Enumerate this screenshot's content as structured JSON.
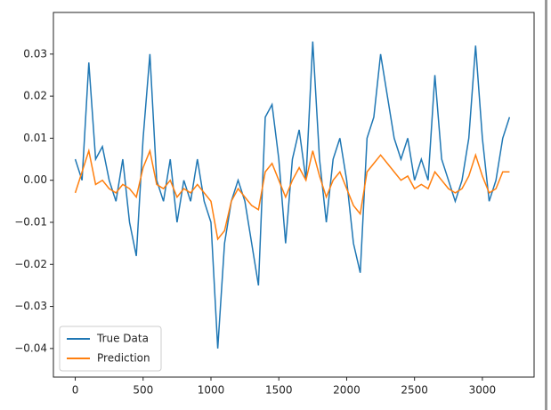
{
  "chart_data": {
    "type": "line",
    "x": [
      0,
      50,
      100,
      150,
      200,
      250,
      300,
      350,
      400,
      450,
      500,
      550,
      600,
      650,
      700,
      750,
      800,
      850,
      900,
      950,
      1000,
      1050,
      1100,
      1150,
      1200,
      1250,
      1300,
      1350,
      1400,
      1450,
      1500,
      1550,
      1600,
      1650,
      1700,
      1750,
      1800,
      1850,
      1900,
      1950,
      2000,
      2050,
      2100,
      2150,
      2200,
      2250,
      2300,
      2350,
      2400,
      2450,
      2500,
      2550,
      2600,
      2650,
      2700,
      2750,
      2800,
      2850,
      2900,
      2950,
      3000,
      3050,
      3100,
      3150,
      3200
    ],
    "series": [
      {
        "name": "True Data",
        "color": "#1f77b4",
        "values": [
          0.005,
          0.0,
          0.028,
          0.005,
          0.008,
          0.0,
          -0.005,
          0.005,
          -0.01,
          -0.018,
          0.01,
          0.03,
          0.0,
          -0.005,
          0.005,
          -0.01,
          0.0,
          -0.005,
          0.005,
          -0.005,
          -0.01,
          -0.04,
          -0.015,
          -0.005,
          0.0,
          -0.005,
          -0.015,
          -0.025,
          0.015,
          0.018,
          0.005,
          -0.015,
          0.005,
          0.012,
          0.0,
          0.033,
          0.005,
          -0.01,
          0.005,
          0.01,
          0.0,
          -0.015,
          -0.022,
          0.01,
          0.015,
          0.03,
          0.02,
          0.01,
          0.005,
          0.01,
          0.0,
          0.005,
          0.0,
          0.025,
          0.005,
          0.0,
          -0.005,
          0.0,
          0.01,
          0.032,
          0.01,
          -0.005,
          0.0,
          0.01,
          0.015
        ]
      },
      {
        "name": "Prediction",
        "color": "#ff7f0e",
        "values": [
          -0.003,
          0.002,
          0.007,
          -0.001,
          0.0,
          -0.002,
          -0.003,
          -0.001,
          -0.002,
          -0.004,
          0.003,
          0.007,
          -0.001,
          -0.002,
          0.0,
          -0.004,
          -0.002,
          -0.003,
          -0.001,
          -0.003,
          -0.005,
          -0.014,
          -0.012,
          -0.005,
          -0.002,
          -0.004,
          -0.006,
          -0.007,
          0.002,
          0.004,
          0.0,
          -0.004,
          0.0,
          0.003,
          0.0,
          0.007,
          0.001,
          -0.004,
          0.0,
          0.002,
          -0.002,
          -0.006,
          -0.008,
          0.002,
          0.004,
          0.006,
          0.004,
          0.002,
          0.0,
          0.001,
          -0.002,
          -0.001,
          -0.002,
          0.002,
          0.0,
          -0.002,
          -0.003,
          -0.002,
          0.001,
          0.006,
          0.001,
          -0.003,
          -0.002,
          0.002,
          0.002
        ]
      }
    ],
    "xlim": [
      -161,
      3381
    ],
    "ylim": [
      -0.0468,
      0.0399
    ],
    "xticks": [
      0,
      500,
      1000,
      1500,
      2000,
      2500,
      3000
    ],
    "yticks": [
      {
        "value": -0.04,
        "label": "−0.04"
      },
      {
        "value": -0.03,
        "label": "−0.03"
      },
      {
        "value": -0.02,
        "label": "−0.02"
      },
      {
        "value": -0.01,
        "label": "−0.01"
      },
      {
        "value": 0,
        "label": "0.00"
      },
      0.01,
      0.02,
      0.03
    ],
    "legend": "lower left"
  }
}
